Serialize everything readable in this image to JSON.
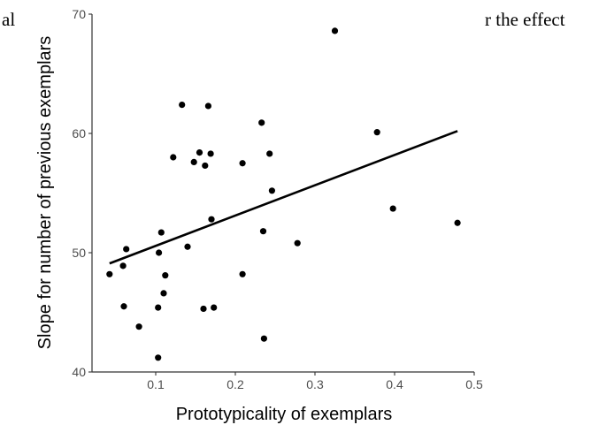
{
  "background_text": {
    "left": "al",
    "right": "r the effect"
  },
  "chart_data": {
    "type": "scatter",
    "title": "",
    "xlabel": "Prototypicality of exemplars",
    "ylabel": "Slope for number of previous exemplars",
    "xlim": [
      0.02,
      0.5
    ],
    "ylim": [
      40,
      70
    ],
    "xticks": [
      0.1,
      0.2,
      0.3,
      0.4,
      0.5
    ],
    "yticks": [
      40,
      50,
      60,
      70
    ],
    "grid": false,
    "points": [
      {
        "x": 0.042,
        "y": 48.2
      },
      {
        "x": 0.059,
        "y": 48.9
      },
      {
        "x": 0.06,
        "y": 45.5
      },
      {
        "x": 0.063,
        "y": 50.3
      },
      {
        "x": 0.079,
        "y": 43.8
      },
      {
        "x": 0.103,
        "y": 41.2
      },
      {
        "x": 0.103,
        "y": 45.4
      },
      {
        "x": 0.104,
        "y": 50.0
      },
      {
        "x": 0.107,
        "y": 51.7
      },
      {
        "x": 0.11,
        "y": 46.6
      },
      {
        "x": 0.112,
        "y": 48.1
      },
      {
        "x": 0.122,
        "y": 58.0
      },
      {
        "x": 0.133,
        "y": 62.4
      },
      {
        "x": 0.14,
        "y": 50.5
      },
      {
        "x": 0.148,
        "y": 57.6
      },
      {
        "x": 0.155,
        "y": 58.4
      },
      {
        "x": 0.16,
        "y": 45.3
      },
      {
        "x": 0.162,
        "y": 57.3
      },
      {
        "x": 0.166,
        "y": 62.3
      },
      {
        "x": 0.169,
        "y": 58.3
      },
      {
        "x": 0.17,
        "y": 52.8
      },
      {
        "x": 0.173,
        "y": 45.4
      },
      {
        "x": 0.209,
        "y": 57.5
      },
      {
        "x": 0.209,
        "y": 48.2
      },
      {
        "x": 0.233,
        "y": 60.9
      },
      {
        "x": 0.235,
        "y": 51.8
      },
      {
        "x": 0.236,
        "y": 42.8
      },
      {
        "x": 0.243,
        "y": 58.3
      },
      {
        "x": 0.246,
        "y": 55.2
      },
      {
        "x": 0.278,
        "y": 50.8
      },
      {
        "x": 0.325,
        "y": 68.6
      },
      {
        "x": 0.378,
        "y": 60.1
      },
      {
        "x": 0.398,
        "y": 53.7
      },
      {
        "x": 0.479,
        "y": 52.5
      }
    ],
    "fit_line": {
      "x": [
        0.042,
        0.479
      ],
      "y": [
        49.1,
        60.2
      ]
    },
    "colors": {
      "points": "#000000",
      "fit": "#000000",
      "axis": "#333333"
    }
  }
}
